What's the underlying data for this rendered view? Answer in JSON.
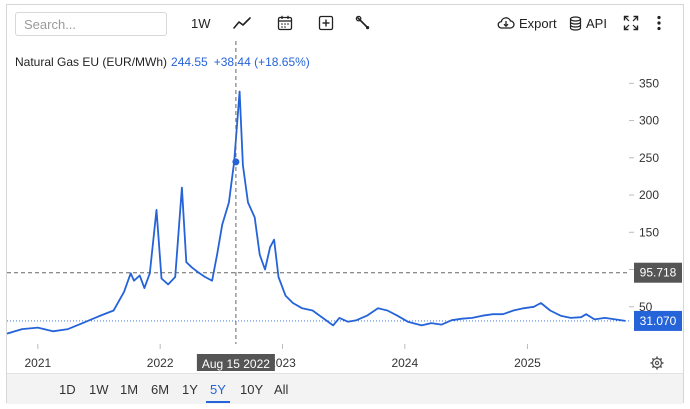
{
  "toolbar": {
    "search_placeholder": "Search...",
    "interval_label": "1W",
    "export_label": "Export",
    "api_label": "API",
    "icons": [
      "line-chart-icon",
      "calendar-icon",
      "add-icon",
      "wrench-icon",
      "cloud-download-icon",
      "database-icon",
      "fullscreen-icon",
      "more-vertical-icon"
    ]
  },
  "legend": {
    "name": "Natural Gas EU (EUR/MWh)",
    "value": "244.55",
    "change": "+38.44 (+18.65%)"
  },
  "crosshair": {
    "date_label": "Aug 15 2022",
    "price_label": "95.718"
  },
  "last_price_label": "31.070",
  "colors": {
    "line": "#2563d9",
    "price_tag_dark": "#555555",
    "price_tag_blue": "#2563d9"
  },
  "ranges": [
    "1D",
    "1W",
    "1M",
    "6M",
    "1Y",
    "5Y",
    "10Y",
    "All"
  ],
  "active_range": "5Y",
  "chart_data": {
    "type": "line",
    "title": "",
    "series": [
      {
        "name": "Natural Gas EU (EUR/MWh)",
        "x": [
          "2020-10-01",
          "2020-11-15",
          "2021-01-01",
          "2021-02-15",
          "2021-04-01",
          "2021-05-15",
          "2021-07-01",
          "2021-08-15",
          "2021-09-15",
          "2021-10-05",
          "2021-10-15",
          "2021-11-01",
          "2021-11-15",
          "2021-12-01",
          "2021-12-21",
          "2022-01-05",
          "2022-01-25",
          "2022-02-15",
          "2022-03-07",
          "2022-03-20",
          "2022-04-05",
          "2022-04-25",
          "2022-05-15",
          "2022-06-05",
          "2022-06-20",
          "2022-07-05",
          "2022-07-25",
          "2022-08-10",
          "2022-08-26",
          "2022-09-05",
          "2022-09-20",
          "2022-10-10",
          "2022-10-25",
          "2022-11-10",
          "2022-11-25",
          "2022-12-07",
          "2022-12-20",
          "2023-01-10",
          "2023-02-01",
          "2023-03-01",
          "2023-04-01",
          "2023-05-01",
          "2023-06-01",
          "2023-06-20",
          "2023-07-15",
          "2023-08-10",
          "2023-09-10",
          "2023-10-13",
          "2023-11-10",
          "2023-12-10",
          "2024-01-10",
          "2024-02-20",
          "2024-03-20",
          "2024-04-20",
          "2024-05-20",
          "2024-06-20",
          "2024-07-20",
          "2024-08-20",
          "2024-09-20",
          "2024-10-20",
          "2024-11-20",
          "2024-12-20",
          "2025-01-20",
          "2025-02-10",
          "2025-03-10",
          "2025-04-10",
          "2025-05-10",
          "2025-06-10",
          "2025-06-25",
          "2025-07-20",
          "2025-08-20",
          "2025-09-20",
          "2025-10-20"
        ],
        "values": [
          14,
          20,
          22,
          17,
          20,
          28,
          37,
          45,
          70,
          95,
          85,
          92,
          75,
          95,
          180,
          88,
          80,
          90,
          210,
          110,
          103,
          96,
          90,
          85,
          120,
          160,
          190,
          245,
          339,
          240,
          190,
          170,
          120,
          100,
          130,
          140,
          90,
          65,
          55,
          48,
          45,
          35,
          25,
          35,
          30,
          32,
          38,
          48,
          45,
          38,
          30,
          25,
          28,
          26,
          32,
          34,
          35,
          38,
          40,
          40,
          45,
          48,
          50,
          55,
          45,
          38,
          35,
          36,
          40,
          33,
          35,
          33,
          31
        ]
      }
    ],
    "xticks": [
      "2021",
      "2022",
      "2023",
      "2024",
      "2025"
    ],
    "yticks": [
      50,
      100,
      150,
      200,
      250,
      300,
      350
    ],
    "ylim": [
      0,
      380
    ],
    "xlim": [
      "2020-10-01",
      "2025-10-31"
    ],
    "grid": false,
    "legend_position": "top-left"
  }
}
